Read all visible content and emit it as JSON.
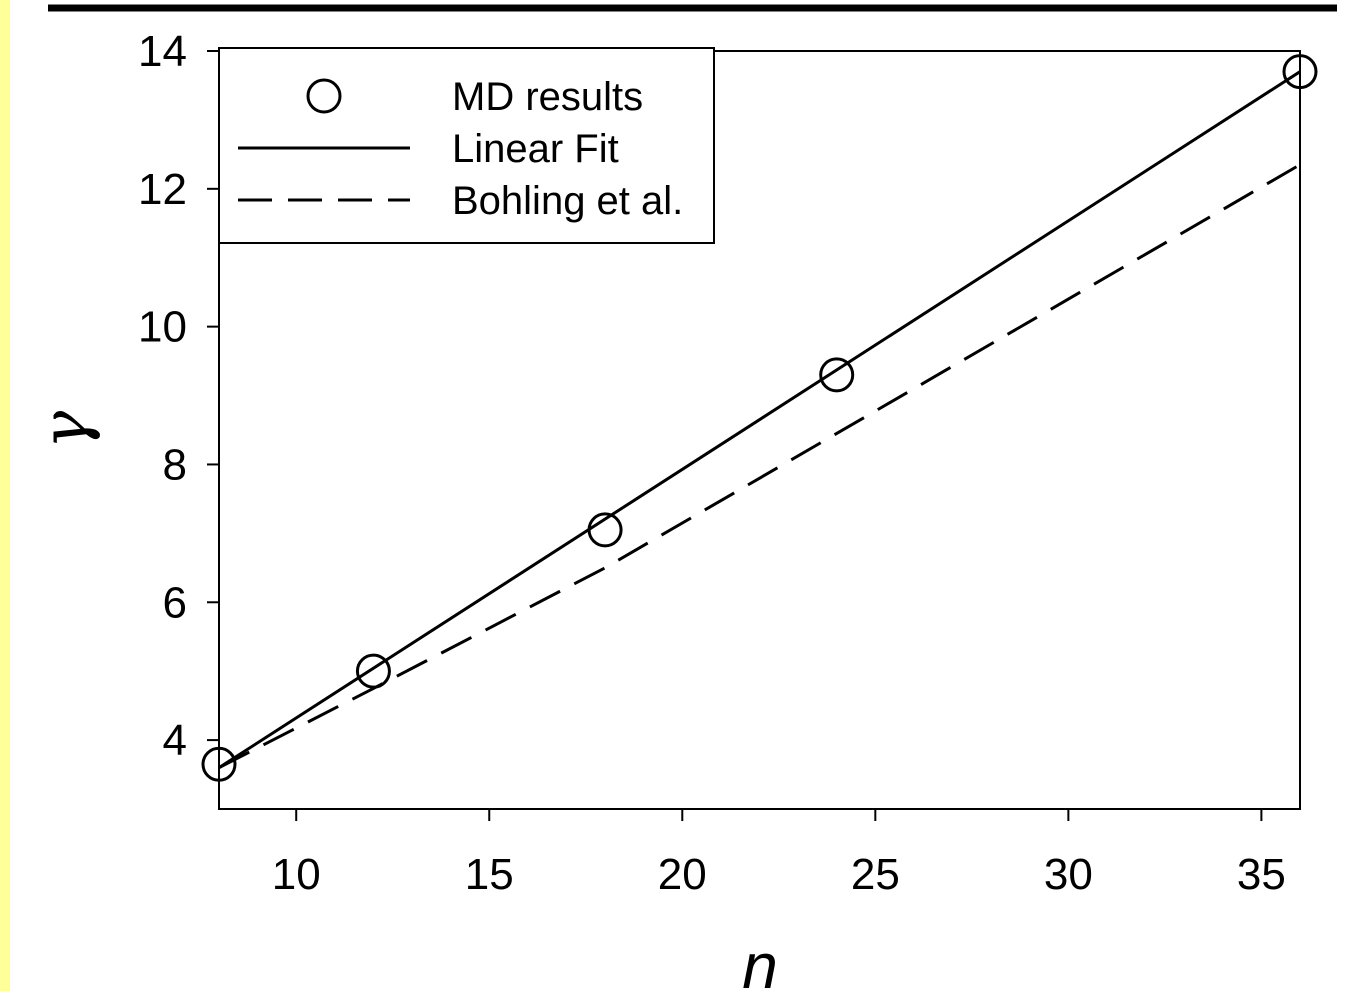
{
  "colors": {
    "strip": "#ffff99",
    "line": "#000000",
    "background": "#ffffff"
  },
  "chart_data": {
    "type": "line",
    "xlabel": "n",
    "ylabel": "γ",
    "xlim": [
      8,
      36
    ],
    "ylim": [
      3,
      14
    ],
    "xticks": [
      10,
      15,
      20,
      25,
      30,
      35
    ],
    "yticks": [
      4,
      6,
      8,
      10,
      12,
      14
    ],
    "grid": false,
    "legend_position": "top-left",
    "series": [
      {
        "name": "MD results",
        "style": "open-circle-markers",
        "x": [
          8,
          12,
          18,
          24,
          36
        ],
        "y": [
          3.65,
          5.0,
          7.05,
          9.3,
          13.7
        ]
      },
      {
        "name": "Linear Fit",
        "style": "solid-line",
        "x": [
          8,
          36
        ],
        "y": [
          3.6,
          13.7
        ]
      },
      {
        "name": "Bohling et al.",
        "style": "dashed-line",
        "x": [
          8,
          12,
          18,
          24,
          36
        ],
        "y": [
          3.6,
          4.75,
          6.5,
          8.45,
          12.35
        ]
      }
    ]
  }
}
